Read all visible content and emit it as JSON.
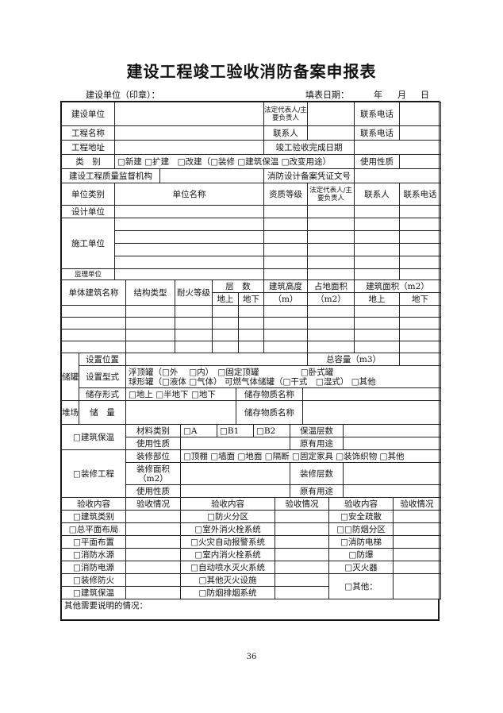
{
  "title": "建设工程竣工验收消防备案申报表",
  "header": {
    "applicant": "建设单位（印章）：",
    "date_label": "填表日期：",
    "year": "年",
    "month": "月",
    "day": "日"
  },
  "basic": {
    "builder": "建设单位",
    "legal_rep": "法定代表人/主要负责人",
    "phone": "联系电话",
    "project_name": "工程名称",
    "contact": "联系人",
    "address": "工程地址",
    "completion_date": "竣工验收完成日期",
    "category": "类　别",
    "category_options": "□新建 □扩建　□改建（□装修 □建筑保温 □改变用途）",
    "use_nature": "使用性质",
    "quality_agency": "建设工程质量监督机构",
    "design_record_no": "消防设计备案凭证文号"
  },
  "units": {
    "headers": [
      "单位类别",
      "单位名称",
      "资质等级",
      "法定代表人/主要负责人",
      "联系人",
      "联系电话"
    ],
    "design": "设计单位",
    "construction": "施工单位",
    "supervision": "监理单位"
  },
  "buildings": {
    "name": "单体建筑名称",
    "structure": "结构类型",
    "fire_rating": "耐火等级",
    "floors": "层　数",
    "above": "地上",
    "below": "地下",
    "height": "建筑高度",
    "height_unit": "（m）",
    "land_area": "占地面积",
    "land_unit": "（m2）",
    "floor_area": "建筑面积（m2）"
  },
  "tank": {
    "label": "储罐",
    "location": "设置位置",
    "capacity": "总容量（m3）",
    "type": "设置型式",
    "type_line1": "浮顶罐（□外　 □内）　□固定顶罐　　　　　□卧式罐",
    "type_line2": "球形罐（□液体 □气体） 可燃气体储罐（□干式　□湿式） □其他",
    "storage_form": "储存形式",
    "storage_options": "□地上 □半地下 □地下",
    "substance": "储存物质名称"
  },
  "yard": {
    "label": "堆场",
    "amount": "储　量",
    "substance": "储存物质名称"
  },
  "insulation": {
    "label": "□建筑保温",
    "material": "材料类别",
    "options": [
      "□A",
      "□B1",
      "□B2"
    ],
    "layers": "保温层数",
    "use_nature": "使用性质",
    "original_use": "原有用途"
  },
  "decoration": {
    "label": "□装修工程",
    "part": "装修部位",
    "part_options": "□顶棚 □墙面 □地面 □隔断 □固定家具 □装饰织物 □其他",
    "area": "装修面积（m2）",
    "layers": "装修层数",
    "use_nature": "使用性质",
    "original_use": "原有用途"
  },
  "acceptance": {
    "content": "验收内容",
    "status": "验收情况",
    "col1": [
      "□建筑类别",
      "□总平面布局",
      "□平面布置",
      "□消防水源",
      "□消防电源",
      "□装修防火",
      "□建筑保温"
    ],
    "col2": [
      "□防火分区",
      "□室外消火栓系统",
      "□火灾自动报警系统",
      "□室内消火栓系统",
      "□自动喷水灭火系统",
      "□其他灭火设施",
      "□防烟排烟系统"
    ],
    "col3": [
      "□安全疏散",
      "□□防烟分区",
      "□消防电梯",
      "□防爆",
      "□灭火器",
      "□其他："
    ]
  },
  "notes": "其他需要说明的情况：",
  "page_number": "36"
}
